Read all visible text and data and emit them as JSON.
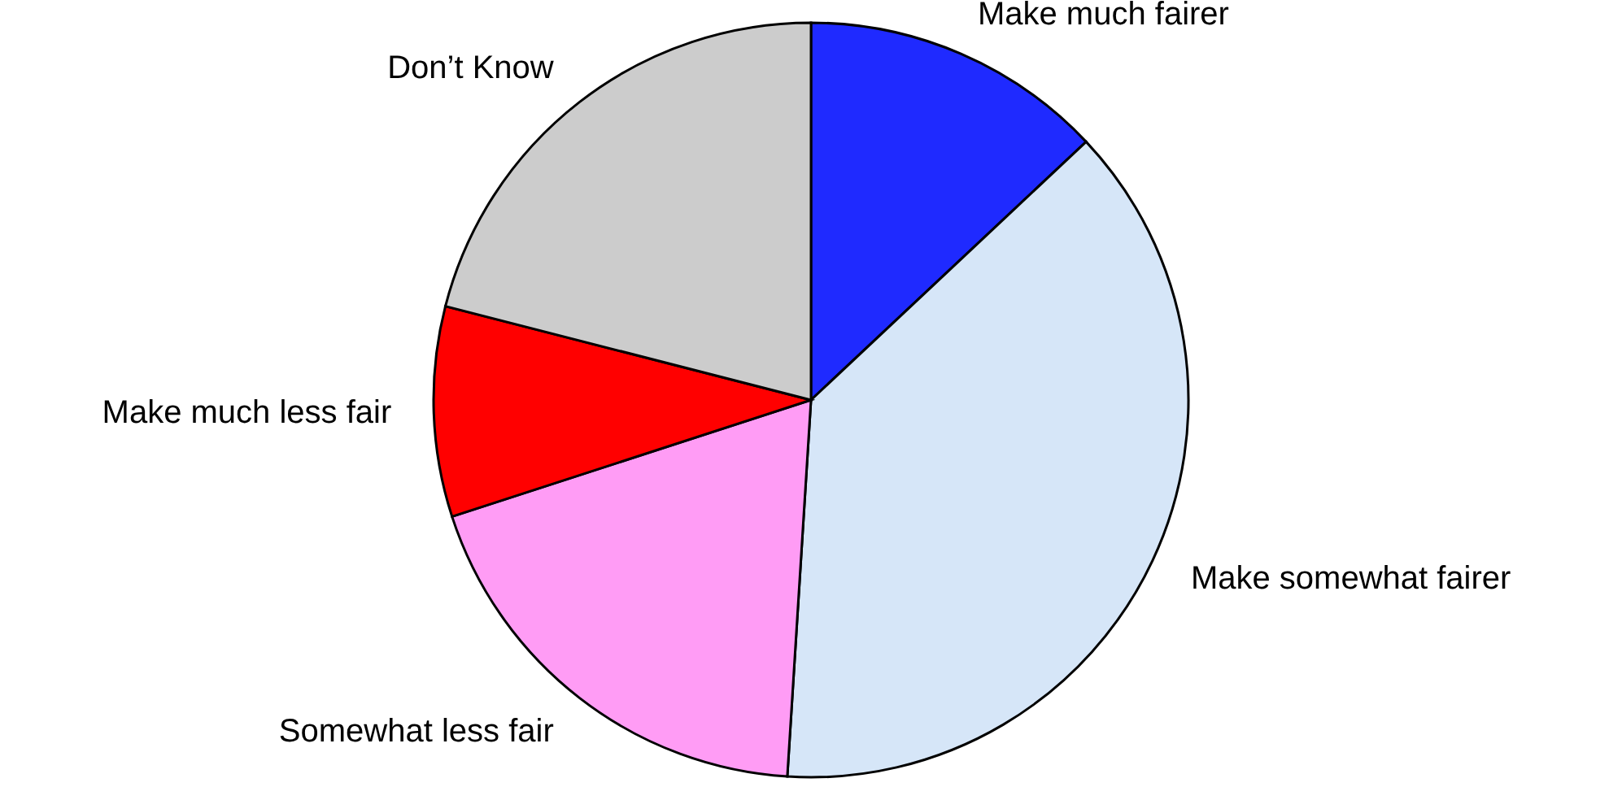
{
  "chart_data": {
    "type": "pie",
    "categories": [
      "Make much fairer",
      "Make somewhat fairer",
      "Somewhat less fair",
      "Make much less fair",
      "Don’t Know"
    ],
    "values": [
      13,
      38,
      19,
      9,
      21
    ],
    "colors": [
      "#1f2aff",
      "#d6e6f8",
      "#ff9cf5",
      "#ff0000",
      "#cccccc"
    ]
  }
}
